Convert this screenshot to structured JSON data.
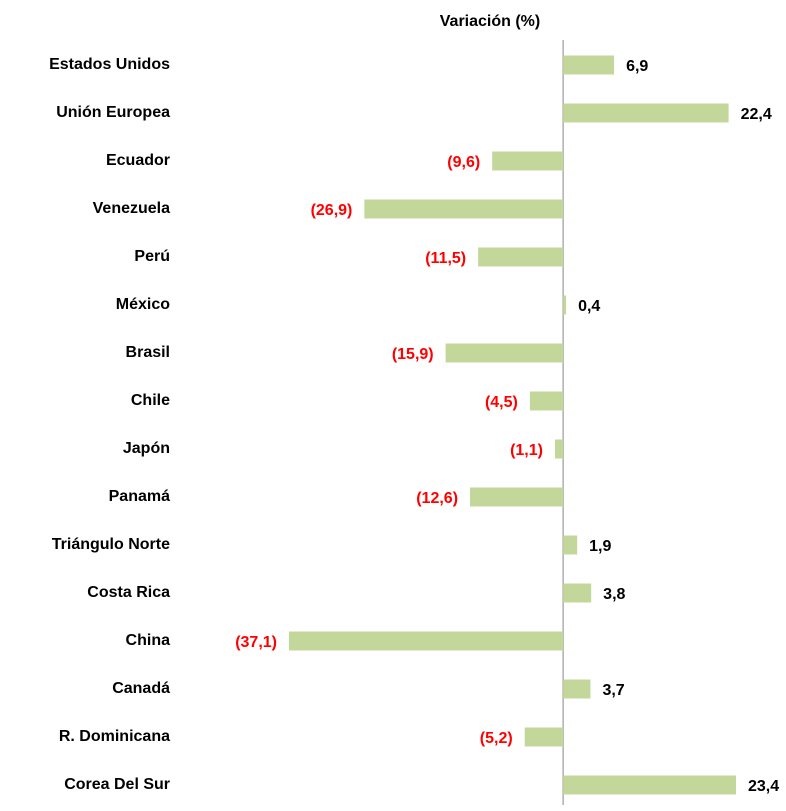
{
  "chart_data": {
    "type": "hbar",
    "title": "Variación (%)",
    "categories": [
      "Estados Unidos",
      "Unión Europea",
      "Ecuador",
      "Venezuela",
      "Perú",
      "México",
      "Brasil",
      "Chile",
      "Japón",
      "Panamá",
      "Triángulo Norte",
      "Costa Rica",
      "China",
      "Canadá",
      "R. Dominicana",
      "Corea Del Sur"
    ],
    "values": [
      6.9,
      22.4,
      -9.6,
      -26.9,
      -11.5,
      0.4,
      -15.9,
      -4.5,
      -1.1,
      -12.6,
      1.9,
      3.8,
      -37.1,
      3.7,
      -5.2,
      23.4
    ],
    "value_labels": [
      "6,9",
      "22,4",
      "(9,6)",
      "(26,9)",
      "(11,5)",
      "0,4",
      "(15,9)",
      "(4,5)",
      "(1,1)",
      "(12,6)",
      "1,9",
      "3,8",
      "(37,1)",
      "3,7",
      "(5,2)",
      "23,4"
    ],
    "color": "#c4d79b",
    "positive_label_color": "#000000",
    "negative_label_color": "#ff0000"
  }
}
